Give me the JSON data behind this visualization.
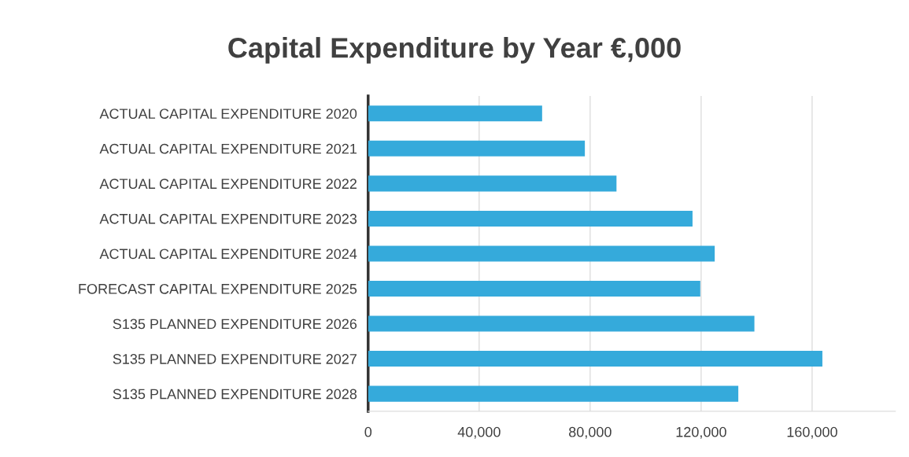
{
  "chart_data": {
    "type": "bar",
    "orientation": "horizontal",
    "title": "Capital Expenditure by Year €,000",
    "categories": [
      "ACTUAL CAPITAL EXPENDITURE 2020",
      "ACTUAL CAPITAL EXPENDITURE 2021",
      "ACTUAL CAPITAL EXPENDITURE 2022",
      "ACTUAL CAPITAL EXPENDITURE 2023",
      "ACTUAL CAPITAL EXPENDITURE 2024",
      "FORECAST CAPITAL EXPENDITURE 2025",
      "S135 PLANNED EXPENDITURE 2026",
      "S135 PLANNED EXPENDITURE 2027",
      "S135 PLANNED EXPENDITURE 2028"
    ],
    "values": [
      62700,
      78100,
      89500,
      116900,
      124900,
      119700,
      139200,
      163700,
      133400
    ],
    "color": "#35aadb",
    "xlim": [
      0,
      190000
    ],
    "xticks": [
      0,
      {
        "value": 40000,
        "label": "40,000"
      },
      {
        "value": 80000,
        "label": "80,000"
      },
      {
        "value": 120000,
        "label": "120,000"
      },
      {
        "value": 160000,
        "label": "160,000"
      }
    ],
    "grid": "x"
  }
}
